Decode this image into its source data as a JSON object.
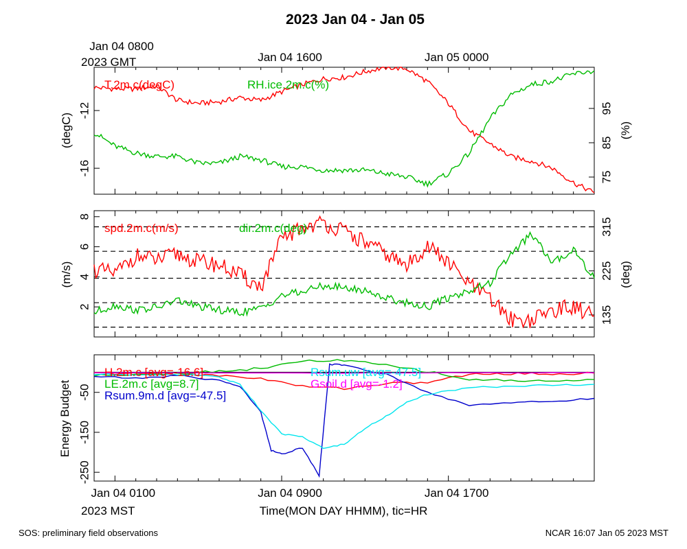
{
  "title": "2023 Jan 04 - Jan 05",
  "top_axis": {
    "ticks": [
      {
        "label": "Jan 04 0800",
        "hour": 1
      },
      {
        "label": "Jan 04 1600",
        "hour": 9
      },
      {
        "label": "Jan 05 0000",
        "hour": 17
      }
    ],
    "tz_label": "2023 GMT"
  },
  "bottom_axis": {
    "ticks": [
      {
        "label": "Jan 04 0100",
        "hour": 1
      },
      {
        "label": "Jan 04 0900",
        "hour": 9
      },
      {
        "label": "Jan 04 1700",
        "hour": 17
      }
    ],
    "tz_label": "2023 MST",
    "xlabel": "Time(MON DAY HHMM), tic=HR"
  },
  "footer": {
    "left": "SOS: preliminary field observations",
    "right": "NCAR 16:07 Jan 05 2023 MST"
  },
  "chart_data": [
    {
      "type": "line",
      "panel": "temperature-humidity",
      "x_range_hours": [
        0,
        24
      ],
      "left_axis": {
        "label": "(degC)",
        "range": [
          -17.8,
          -9
        ],
        "ticks": [
          -12,
          -16
        ]
      },
      "right_axis": {
        "label": "(%)",
        "range": [
          70,
          107
        ],
        "ticks": [
          95,
          85,
          75
        ]
      },
      "series": [
        {
          "name": "T.2m.c(degC)",
          "axis": "left",
          "color": "#ff0000",
          "x": [
            0,
            1,
            2,
            3,
            4,
            5,
            6,
            7,
            8,
            9,
            10,
            11,
            12,
            13,
            14,
            15,
            16,
            17,
            18,
            19,
            20,
            21,
            22,
            23,
            24
          ],
          "y": [
            -10.4,
            -10.5,
            -10.5,
            -10.3,
            -11.3,
            -11.5,
            -11.4,
            -11.1,
            -11.3,
            -10.7,
            -10.2,
            -9.8,
            -9.7,
            -9.3,
            -9.0,
            -9.1,
            -10.0,
            -11.5,
            -13.4,
            -14.3,
            -15.2,
            -15.5,
            -16.0,
            -17.0,
            -17.7
          ]
        },
        {
          "name": "RH.ice.2m.c(%)",
          "axis": "left2",
          "color": "#00bb00",
          "x": [
            0,
            1,
            2,
            3,
            4,
            5,
            6,
            7,
            8,
            9,
            10,
            11,
            12,
            13,
            14,
            15,
            16,
            17,
            18,
            19,
            20,
            21,
            22,
            23,
            24
          ],
          "y": [
            88,
            84,
            82,
            81,
            81,
            79,
            79,
            81,
            80,
            78,
            78,
            77,
            77,
            77,
            76,
            75,
            73,
            76,
            82,
            92,
            99,
            102,
            103,
            105,
            106
          ]
        }
      ]
    },
    {
      "type": "line",
      "panel": "wind",
      "x_range_hours": [
        0,
        24
      ],
      "left_axis": {
        "label": "(m/s)",
        "range": [
          0,
          8.4
        ],
        "ticks": [
          8,
          6,
          4,
          2
        ]
      },
      "right_axis": {
        "label": "(deg)",
        "range": [
          90,
          348
        ],
        "ticks": [
          315,
          225,
          135
        ]
      },
      "reference_lines_deg": [
        110,
        160,
        210,
        265,
        315
      ],
      "series": [
        {
          "name": "spd.2m.c(m/s)",
          "axis": "left",
          "color": "#ff0000",
          "x": [
            0,
            1,
            2,
            3,
            4,
            5,
            6,
            7,
            8,
            9,
            10,
            11,
            12,
            13,
            14,
            15,
            16,
            17,
            18,
            19,
            20,
            21,
            22,
            23,
            24
          ],
          "y": [
            4.5,
            4.2,
            5.4,
            5.1,
            5.5,
            5.0,
            4.8,
            4.1,
            3.3,
            6.5,
            7.3,
            7.6,
            7.0,
            6.3,
            5.5,
            4.7,
            6.1,
            4.9,
            3.5,
            2.5,
            1.2,
            1.1,
            1.8,
            2.0,
            1.4
          ]
        },
        {
          "name": "dir.2m.c(deg)",
          "axis": "right",
          "color": "#00bb00",
          "x": [
            0,
            1,
            2,
            3,
            4,
            5,
            6,
            7,
            8,
            9,
            10,
            11,
            12,
            13,
            14,
            15,
            16,
            17,
            18,
            19,
            20,
            21,
            22,
            23,
            24
          ],
          "y": [
            140,
            155,
            145,
            150,
            165,
            152,
            145,
            140,
            148,
            175,
            182,
            195,
            190,
            185,
            170,
            160,
            152,
            170,
            185,
            200,
            260,
            300,
            240,
            270,
            210
          ]
        }
      ]
    },
    {
      "type": "line",
      "panel": "energy-budget",
      "x_range_hours": [
        0,
        24
      ],
      "left_axis": {
        "label": "Energy Budget",
        "range": [
          -272,
          44
        ],
        "ticks": [
          -50,
          -150,
          -250
        ]
      },
      "zero_line": 0,
      "series": [
        {
          "name": "H.2m.c [avg=-16.6]",
          "color": "#ff0000",
          "x": [
            0,
            2,
            4,
            6,
            8,
            10,
            12,
            14,
            16,
            18,
            20,
            22,
            24
          ],
          "y": [
            -2,
            -3,
            -5,
            -8,
            -15,
            -35,
            -40,
            -28,
            -25,
            -5,
            -3,
            -4,
            -2
          ]
        },
        {
          "name": "LE.2m.c [avg=8.7]",
          "color": "#00bb00",
          "x": [
            0,
            2,
            4,
            6,
            8,
            10,
            12,
            14,
            16,
            18,
            20,
            22,
            24
          ],
          "y": [
            -8,
            -4,
            -2,
            3,
            10,
            28,
            30,
            18,
            2,
            -18,
            -20,
            -22,
            -18
          ]
        },
        {
          "name": "Rsum.9m.d [avg=-47.5]",
          "color": "#0000cc",
          "x": [
            0,
            2,
            4,
            6,
            7,
            8,
            8.5,
            9,
            10,
            10.8,
            11.3,
            12,
            14,
            16,
            18,
            20,
            22,
            24
          ],
          "y": [
            -10,
            -15,
            -8,
            -20,
            -35,
            -100,
            -195,
            -205,
            -188,
            -258,
            20,
            18,
            -5,
            -50,
            -82,
            -75,
            -73,
            -65
          ]
        },
        {
          "name": "Rsum.uw [avg=-47.5]",
          "color": "#00e5ee",
          "x": [
            0,
            2,
            4,
            6,
            7,
            8,
            9,
            10,
            11,
            12,
            13,
            14,
            15,
            16,
            18,
            20,
            22,
            24
          ],
          "y": [
            -5,
            -5,
            -5,
            -12,
            -30,
            -95,
            -155,
            -160,
            -190,
            -180,
            -140,
            -110,
            -75,
            -55,
            -38,
            -35,
            -32,
            -30
          ]
        },
        {
          "name": "Gsoil.d [avg=-1.2]",
          "color": "#ff00ff",
          "x": [
            0,
            6,
            12,
            18,
            24
          ],
          "y": [
            -1,
            -1,
            -2,
            -1,
            -1
          ]
        }
      ]
    }
  ]
}
